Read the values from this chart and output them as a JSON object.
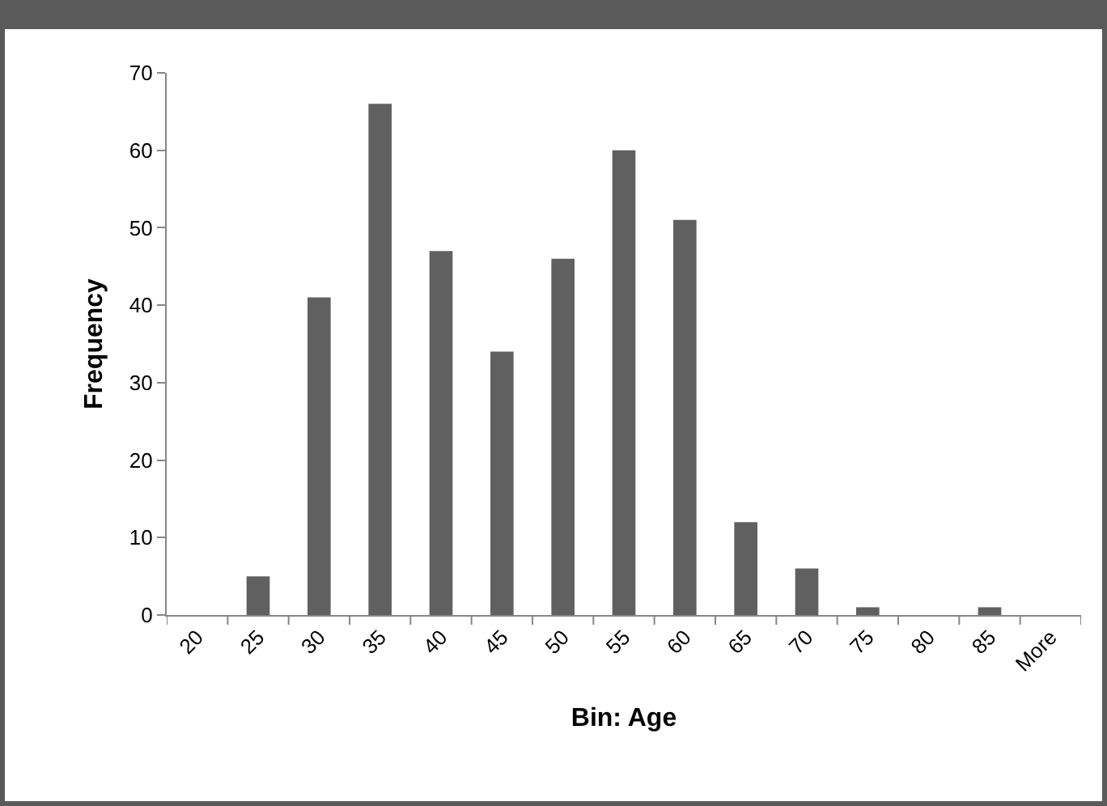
{
  "chart_data": {
    "type": "bar",
    "xlabel": "Bin: Age",
    "ylabel": "Frequency",
    "categories": [
      "20",
      "25",
      "30",
      "35",
      "40",
      "45",
      "50",
      "55",
      "60",
      "65",
      "70",
      "75",
      "80",
      "85",
      "More"
    ],
    "values": [
      0,
      5,
      41,
      66,
      47,
      34,
      46,
      60,
      51,
      12,
      6,
      1,
      0,
      1,
      0
    ],
    "color": "#606060",
    "ylim": [
      0,
      70
    ],
    "yticks": [
      0,
      10,
      20,
      30,
      40,
      50,
      60,
      70
    ]
  }
}
